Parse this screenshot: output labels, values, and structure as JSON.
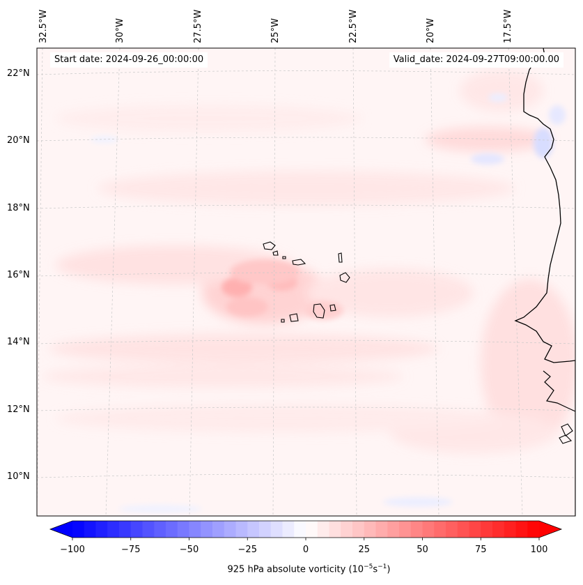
{
  "header": {
    "start_date": "Start date: 2024-09-26_00:00:00",
    "valid_date": "Valid_date: 2024-09-27T09:00:00.00"
  },
  "map": {
    "field": "925 hPa absolute vorticity",
    "longitude_labels": [
      "32.5°W",
      "30°W",
      "27.5°W",
      "25°W",
      "22.5°W",
      "20°W",
      "17.5°W"
    ],
    "latitude_labels": [
      "22°N",
      "20°N",
      "18°N",
      "16°N",
      "14°N",
      "12°N",
      "10°N"
    ],
    "features": [
      "Cape Verde Islands",
      "West African coastline",
      "vorticity maximum near 16°N 26°W"
    ]
  },
  "colorbar": {
    "label_prefix": "925 hPa absolute vorticity (10",
    "label_exp1": "−5",
    "label_mid": "s",
    "label_exp2": "−1",
    "label_suffix": ")",
    "range": [
      -100,
      100
    ],
    "ticks": [
      {
        "value": -100,
        "label": "−100"
      },
      {
        "value": -75,
        "label": "−75"
      },
      {
        "value": -50,
        "label": "−50"
      },
      {
        "value": -25,
        "label": "−25"
      },
      {
        "value": 0,
        "label": "0"
      },
      {
        "value": 25,
        "label": "25"
      },
      {
        "value": 50,
        "label": "50"
      },
      {
        "value": 75,
        "label": "75"
      },
      {
        "value": 100,
        "label": "100"
      }
    ],
    "cmap_low": "#0000ff",
    "cmap_mid": "#ffffff",
    "cmap_high": "#ff0000"
  }
}
